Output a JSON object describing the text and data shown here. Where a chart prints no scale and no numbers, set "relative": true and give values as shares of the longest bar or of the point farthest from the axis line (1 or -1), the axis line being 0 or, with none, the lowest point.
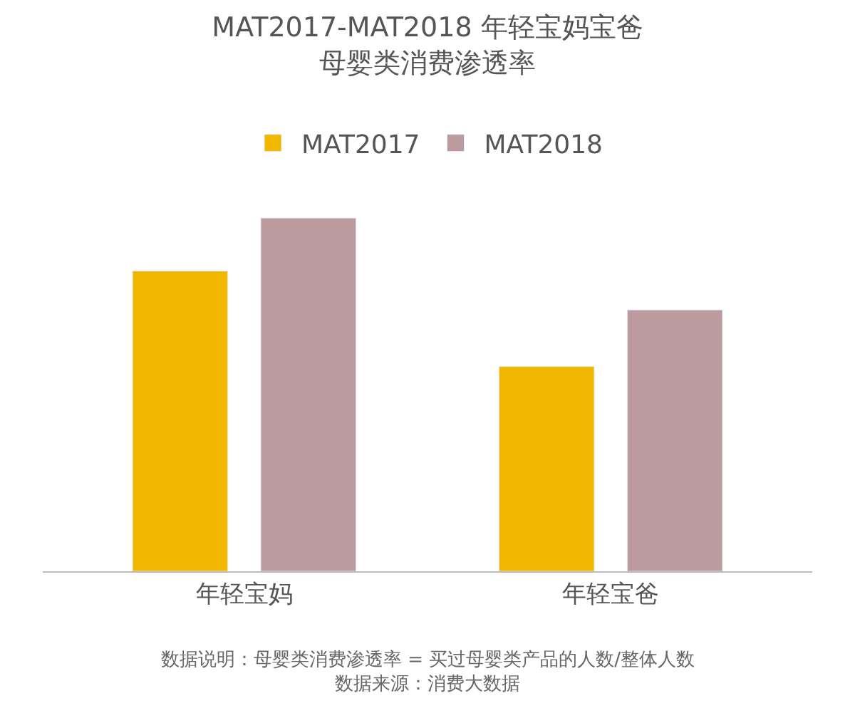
{
  "chart_data": {
    "type": "bar",
    "title": "MAT2017-MAT2018 年轻宝妈宝爸",
    "subtitle": "母婴类消费渗透率",
    "categories": [
      "年轻宝妈",
      "年轻宝爸"
    ],
    "relative": true,
    "legend": "top",
    "series": [
      {
        "name": "MAT2017",
        "color": "#f2b800",
        "values": [
          0.85,
          0.58
        ]
      },
      {
        "name": "MAT2018",
        "color": "#bb9b9e",
        "values": [
          1,
          0.74
        ]
      }
    ],
    "annotations": [
      "数据说明：母婴类消费渗透率 = 买过母婴类产品的人数/整体人数",
      "数据来源：消费大数据"
    ]
  }
}
